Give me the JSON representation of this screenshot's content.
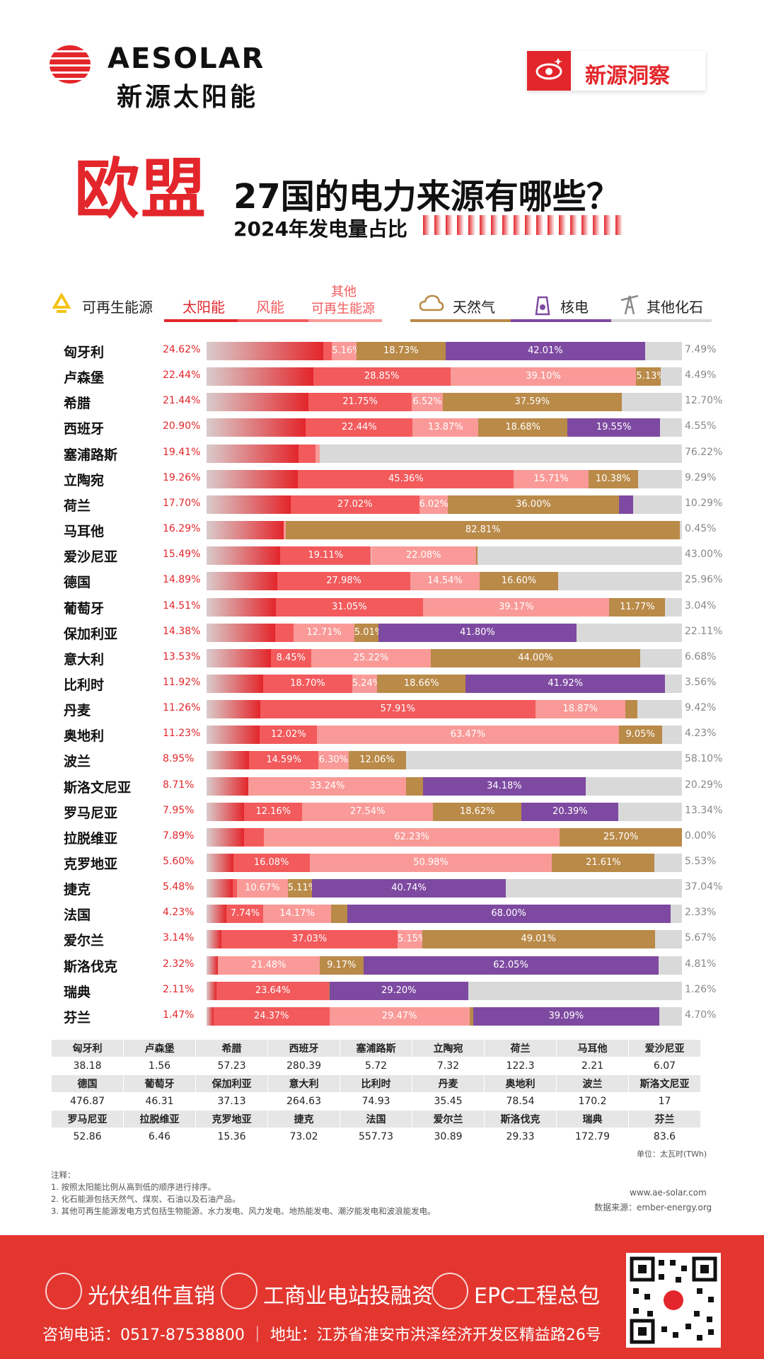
{
  "brand": {
    "name_en": "AESOLAR",
    "name_cn": "新源太阳能",
    "badge": "新源洞察"
  },
  "title": {
    "highlight": "欧盟",
    "main": "27国的电力来源有哪些？",
    "sub": "2024年发电量占比"
  },
  "legend": {
    "renewable": "可再生能源",
    "solar": "太阳能",
    "wind": "风能",
    "other_renewable_l1": "其他",
    "other_renewable_l2": "可再生能源",
    "gas": "天然气",
    "nuclear": "核电",
    "other_fossil": "其他化石"
  },
  "colors": {
    "solar": "#e3262b",
    "wind": "#f25a5c",
    "other_renewable": "#f99a98",
    "gas": "#b98a48",
    "nuclear": "#7e4aa1",
    "other_fossil": "#d9d9d9"
  },
  "chart_data": {
    "type": "bar",
    "stacked": true,
    "unit": "%",
    "series_order": [
      "solar",
      "wind",
      "other_renewable",
      "gas",
      "nuclear",
      "other_fossil"
    ],
    "rows": [
      {
        "country": "匈牙利",
        "solar": "24.62%",
        "wind": "1.75%",
        "other_renewable": "5.16%",
        "gas": "18.73%",
        "nuclear": "42.01%",
        "other_fossil": "7.49%"
      },
      {
        "country": "卢森堡",
        "solar": "22.44%",
        "wind": "28.85%",
        "other_renewable": "39.10%",
        "gas": "5.13%",
        "nuclear": "",
        "other_fossil": "4.49%"
      },
      {
        "country": "希腊",
        "solar": "21.44%",
        "wind": "21.75%",
        "other_renewable": "6.52%",
        "gas": "37.59%",
        "nuclear": "",
        "other_fossil": "12.70%"
      },
      {
        "country": "西班牙",
        "solar": "20.90%",
        "wind": "22.44%",
        "other_renewable": "13.87%",
        "gas": "18.68%",
        "nuclear": "19.55%",
        "other_fossil": "4.55%"
      },
      {
        "country": "塞浦路斯",
        "solar": "19.41%",
        "wind": "3.50%",
        "other_renewable": "0.87%",
        "gas": "",
        "nuclear": "",
        "other_fossil": "76.22%"
      },
      {
        "country": "立陶宛",
        "solar": "19.26%",
        "wind": "45.36%",
        "other_renewable": "15.71%",
        "gas": "10.38%",
        "nuclear": "",
        "other_fossil": "9.29%"
      },
      {
        "country": "荷兰",
        "solar": "17.70%",
        "wind": "27.02%",
        "other_renewable": "6.02%",
        "gas": "36.00%",
        "nuclear": "2.94%",
        "other_fossil": "10.29%"
      },
      {
        "country": "马耳他",
        "solar": "16.29%",
        "wind": "",
        "other_renewable": "0.45%",
        "gas": "82.81%",
        "nuclear": "",
        "other_fossil": "0.45%"
      },
      {
        "country": "爱沙尼亚",
        "solar": "15.49%",
        "wind": "19.11%",
        "other_renewable": "22.08%",
        "gas": "0.33%",
        "nuclear": "",
        "other_fossil": "43.00%"
      },
      {
        "country": "德国",
        "solar": "14.89%",
        "wind": "27.98%",
        "other_renewable": "14.54%",
        "gas": "16.60%",
        "nuclear": "",
        "other_fossil": "25.96%"
      },
      {
        "country": "葡萄牙",
        "solar": "14.51%",
        "wind": "31.05%",
        "other_renewable": "39.17%",
        "gas": "11.77%",
        "nuclear": "",
        "other_fossil": "3.04%"
      },
      {
        "country": "保加利亚",
        "solar": "14.38%",
        "wind": "3.99%",
        "other_renewable": "12.71%",
        "gas": "5.01%",
        "nuclear": "41.80%",
        "other_fossil": "22.11%"
      },
      {
        "country": "意大利",
        "solar": "13.53%",
        "wind": "8.45%",
        "other_renewable": "25.22%",
        "gas": "44.00%",
        "nuclear": "",
        "other_fossil": "6.68%"
      },
      {
        "country": "比利时",
        "solar": "11.92%",
        "wind": "18.70%",
        "other_renewable": "5.24%",
        "gas": "18.66%",
        "nuclear": "41.92%",
        "other_fossil": "3.56%"
      },
      {
        "country": "丹麦",
        "solar": "11.26%",
        "wind": "57.91%",
        "other_renewable": "18.87%",
        "gas": "2.54%",
        "nuclear": "",
        "other_fossil": "9.42%"
      },
      {
        "country": "奥地利",
        "solar": "11.23%",
        "wind": "12.02%",
        "other_renewable": "63.47%",
        "gas": "9.05%",
        "nuclear": "",
        "other_fossil": "4.23%"
      },
      {
        "country": "波兰",
        "solar": "8.95%",
        "wind": "14.59%",
        "other_renewable": "6.30%",
        "gas": "12.06%",
        "nuclear": "",
        "other_fossil": "58.10%"
      },
      {
        "country": "斯洛文尼亚",
        "solar": "8.71%",
        "wind": "0.06%",
        "other_renewable": "33.24%",
        "gas": "3.53%",
        "nuclear": "34.18%",
        "other_fossil": "20.29%"
      },
      {
        "country": "罗马尼亚",
        "solar": "7.95%",
        "wind": "12.16%",
        "other_renewable": "27.54%",
        "gas": "18.62%",
        "nuclear": "20.39%",
        "other_fossil": "13.34%"
      },
      {
        "country": "拉脱维亚",
        "solar": "7.89%",
        "wind": "4.18%",
        "other_renewable": "62.23%",
        "gas": "25.70%",
        "nuclear": "",
        "other_fossil": "0.00%"
      },
      {
        "country": "克罗地亚",
        "solar": "5.60%",
        "wind": "16.08%",
        "other_renewable": "50.98%",
        "gas": "21.61%",
        "nuclear": "",
        "other_fossil": "5.53%"
      },
      {
        "country": "捷克",
        "solar": "5.48%",
        "wind": "0.93%",
        "other_renewable": "10.67%",
        "gas": "5.11%",
        "nuclear": "40.74%",
        "other_fossil": "37.04%"
      },
      {
        "country": "法国",
        "solar": "4.23%",
        "wind": "7.74%",
        "other_renewable": "14.17%",
        "gas": "3.42%",
        "nuclear": "68.00%",
        "other_fossil": "2.33%"
      },
      {
        "country": "爱尔兰",
        "solar": "3.14%",
        "wind": "37.03%",
        "other_renewable": "5.15%",
        "gas": "49.01%",
        "nuclear": "",
        "other_fossil": "5.67%"
      },
      {
        "country": "斯洛伐克",
        "solar": "2.32%",
        "wind": "",
        "other_renewable": "21.48%",
        "gas": "9.17%",
        "nuclear": "62.05%",
        "other_fossil": "4.81%"
      },
      {
        "country": "瑞典",
        "solar": "2.11%",
        "wind": "23.64%",
        "other_renewable": "",
        "gas": "0.09%",
        "nuclear": "29.20%",
        "other_fossil": "1.26%"
      },
      {
        "country": "芬兰",
        "solar": "1.47%",
        "wind": "24.37%",
        "other_renewable": "29.47%",
        "gas": "0.79%",
        "nuclear": "39.09%",
        "other_fossil": "4.70%"
      }
    ]
  },
  "generation_table": {
    "rows": [
      {
        "names": [
          "匈牙利",
          "卢森堡",
          "希腊",
          "西班牙",
          "塞浦路斯",
          "立陶宛",
          "荷兰",
          "马耳他",
          "爱沙尼亚"
        ],
        "values": [
          "38.18",
          "1.56",
          "57.23",
          "280.39",
          "5.72",
          "7.32",
          "122.3",
          "2.21",
          "6.07"
        ]
      },
      {
        "names": [
          "德国",
          "葡萄牙",
          "保加利亚",
          "意大利",
          "比利时",
          "丹麦",
          "奥地利",
          "波兰",
          "斯洛文尼亚"
        ],
        "values": [
          "476.87",
          "46.31",
          "37.13",
          "264.63",
          "74.93",
          "35.45",
          "78.54",
          "170.2",
          "17"
        ]
      },
      {
        "names": [
          "罗马尼亚",
          "拉脱维亚",
          "克罗地亚",
          "捷克",
          "法国",
          "爱尔兰",
          "斯洛伐克",
          "瑞典",
          "芬兰"
        ],
        "values": [
          "52.86",
          "6.46",
          "15.36",
          "73.02",
          "557.73",
          "30.89",
          "29.33",
          "172.79",
          "83.6"
        ]
      }
    ],
    "unit": "单位：太瓦时(TWh)"
  },
  "notes": {
    "heading": "注释：",
    "items": [
      "1. 按照太阳能比例从高到低的顺序进行排序。",
      "2. 化石能源包括天然气、煤炭、石油以及石油产品。",
      "3. 其他可再生能源发电方式包括生物能源、水力发电、风力发电、地热能发电、潮汐能发电和波浪能发电。"
    ],
    "website": "www.ae-solar.com",
    "source": "数据来源：ember-energy.org"
  },
  "footer": {
    "services": [
      "光伏组件直销",
      "工商业电站投融资",
      "EPC工程总包"
    ],
    "contact": "咨询电话：0517-87538800 ｜ 地址：江苏省淮安市洪泽经济开发区精益路26号"
  }
}
